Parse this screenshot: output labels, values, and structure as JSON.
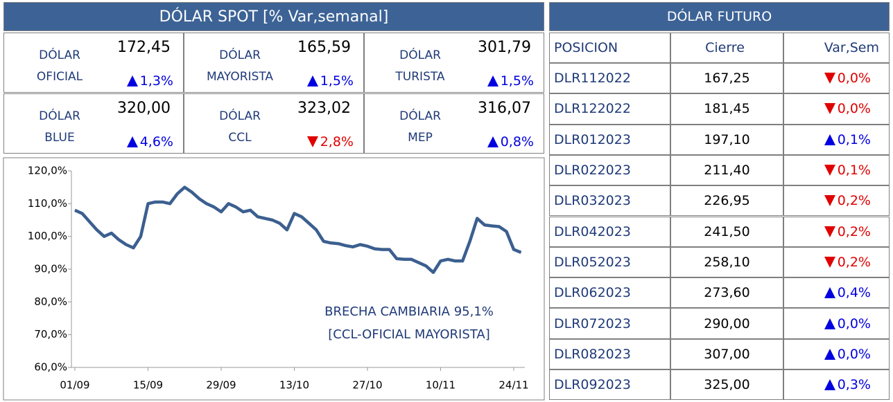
{
  "spot": {
    "title": "DÓLAR SPOT [% Var,semanal]",
    "items": [
      {
        "name": [
          "DÓLAR",
          "OFICIAL"
        ],
        "value": "172,45",
        "change": "1,3%",
        "direction": "up"
      },
      {
        "name": [
          "DÓLAR",
          "MAYORISTA"
        ],
        "value": "165,59",
        "change": "1,5%",
        "direction": "up"
      },
      {
        "name": [
          "DÓLAR",
          "TURISTA"
        ],
        "value": "301,79",
        "change": "1,5%",
        "direction": "up"
      },
      {
        "name": [
          "DÓLAR",
          "BLUE"
        ],
        "value": "320,00",
        "change": "4,6%",
        "direction": "up"
      },
      {
        "name": [
          "DÓLAR",
          "CCL"
        ],
        "value": "323,02",
        "change": "2,8%",
        "direction": "down"
      },
      {
        "name": [
          "DÓLAR",
          "MEP"
        ],
        "value": "316,07",
        "change": "0,8%",
        "direction": "up"
      }
    ]
  },
  "futuro": {
    "title": "DÓLAR FUTURO",
    "columns": [
      "POSICION",
      "Cierre",
      "Var,Sem"
    ],
    "rows": [
      {
        "position": "DLR112022",
        "close": "167,25",
        "change": "0,0%",
        "direction": "down"
      },
      {
        "position": "DLR122022",
        "close": "181,45",
        "change": "0,0%",
        "direction": "down"
      },
      {
        "position": "DLR012023",
        "close": "197,10",
        "change": "0,1%",
        "direction": "up"
      },
      {
        "position": "DLR022023",
        "close": "211,40",
        "change": "0,1%",
        "direction": "down"
      },
      {
        "position": "DLR032023",
        "close": "226,95",
        "change": "0,2%",
        "direction": "down"
      },
      {
        "position": "DLR042023",
        "close": "241,50",
        "change": "0,2%",
        "direction": "down"
      },
      {
        "position": "DLR052023",
        "close": "258,10",
        "change": "0,2%",
        "direction": "down"
      },
      {
        "position": "DLR062023",
        "close": "273,60",
        "change": "0,4%",
        "direction": "up"
      },
      {
        "position": "DLR072023",
        "close": "290,00",
        "change": "0,0%",
        "direction": "up"
      },
      {
        "position": "DLR082023",
        "close": "307,00",
        "change": "0,0%",
        "direction": "up"
      },
      {
        "position": "DLR092023",
        "close": "325,00",
        "change": "0,3%",
        "direction": "up"
      }
    ]
  },
  "chart_data": {
    "type": "line",
    "annotation": [
      "BRECHA CAMBIARIA 95,1%",
      "[CCL-OFICIAL MAYORISTA]"
    ],
    "categories": [
      "01/09",
      null,
      null,
      null,
      null,
      null,
      null,
      null,
      null,
      null,
      "15/09",
      null,
      null,
      null,
      null,
      null,
      null,
      null,
      null,
      null,
      "29/09",
      null,
      null,
      null,
      null,
      null,
      null,
      null,
      null,
      null,
      "13/10",
      null,
      null,
      null,
      null,
      null,
      null,
      null,
      null,
      null,
      "27/10",
      null,
      null,
      null,
      null,
      null,
      null,
      null,
      null,
      null,
      "10/11",
      null,
      null,
      null,
      null,
      null,
      null,
      null,
      null,
      null,
      "24/11",
      null
    ],
    "series": [
      {
        "name": "BRECHA CAMBIARIA",
        "color": "#3b5f8f",
        "values": [
          108,
          107,
          104.5,
          102,
          100,
          101,
          99,
          97.5,
          96.5,
          100,
          110,
          110.5,
          110.5,
          110,
          113,
          115,
          113.5,
          111.5,
          110,
          109,
          107.5,
          110,
          109,
          107.5,
          108,
          106,
          105.5,
          105,
          104,
          102,
          107,
          106,
          104,
          102,
          98.5,
          98,
          97.8,
          97.2,
          96.8,
          97.5,
          97,
          96.2,
          96,
          96,
          93.2,
          93,
          93,
          92,
          91,
          89,
          92.5,
          93,
          92.5,
          92.5,
          98.5,
          105.5,
          103.5,
          103.2,
          103,
          101.5,
          96,
          95.1
        ]
      }
    ],
    "ylim": [
      60,
      120
    ],
    "yticks": [
      {
        "value": 60,
        "label": "60,0%"
      },
      {
        "value": 70,
        "label": "70,0%"
      },
      {
        "value": 80,
        "label": "80,0%"
      },
      {
        "value": 90,
        "label": "90,0%"
      },
      {
        "value": 100,
        "label": "100,0%"
      },
      {
        "value": 110,
        "label": "110,0%"
      },
      {
        "value": 120,
        "label": "120,0%"
      }
    ]
  }
}
